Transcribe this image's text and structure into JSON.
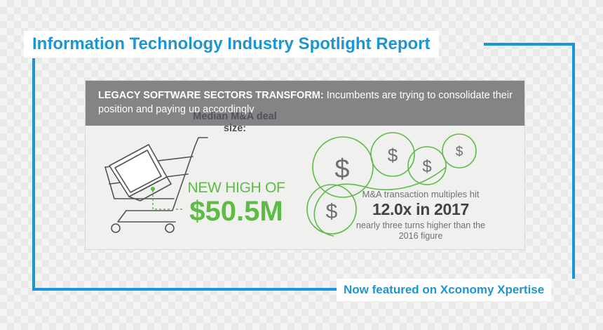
{
  "title": "Information Technology Industry Spotlight Report",
  "footer": "Now featured on Xconomy Xpertise",
  "banner": {
    "lead": "LEGACY SOFTWARE SECTORS TRANSFORM:",
    "text": "Incumbents are trying to consolidate their position and paying up accordingly"
  },
  "deal": {
    "label": "Median M&A deal size:",
    "kicker": "NEW HIGH OF",
    "value": "$50.5M"
  },
  "multiples": {
    "kicker": "M&A transaction multiples hit",
    "value": "12.0x in 2017",
    "note": "nearly three turns higher than the 2016 figure",
    "symbol": "$"
  },
  "colors": {
    "frame": "#1a96d6",
    "banner": "#838485",
    "accent_green": "#5dbb46",
    "icon_gray": "#505257"
  }
}
